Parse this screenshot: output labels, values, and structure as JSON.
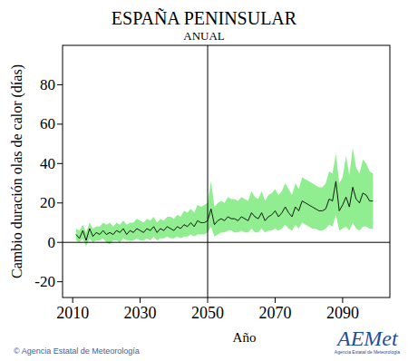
{
  "chart_data": {
    "type": "line",
    "title": "ESPAÑA PENINSULAR",
    "subtitle": "ANUAL",
    "x_label": "Año",
    "y_label": "Cambio duración olas de calor (días)",
    "source": "© Agencia Estatal de Meteorología",
    "logo": "AEMet",
    "logo_caption": "Agencia Estatal de Meteorología",
    "x": [
      2011,
      2012,
      2013,
      2014,
      2015,
      2016,
      2017,
      2018,
      2019,
      2020,
      2021,
      2022,
      2023,
      2024,
      2025,
      2026,
      2027,
      2028,
      2029,
      2030,
      2031,
      2032,
      2033,
      2034,
      2035,
      2036,
      2037,
      2038,
      2039,
      2040,
      2041,
      2042,
      2043,
      2044,
      2045,
      2046,
      2047,
      2048,
      2049,
      2050,
      2051,
      2052,
      2053,
      2054,
      2055,
      2056,
      2057,
      2058,
      2059,
      2060,
      2061,
      2062,
      2063,
      2064,
      2065,
      2066,
      2067,
      2068,
      2069,
      2070,
      2071,
      2072,
      2073,
      2074,
      2075,
      2076,
      2077,
      2078,
      2079,
      2080,
      2081,
      2082,
      2083,
      2084,
      2085,
      2086,
      2087,
      2088,
      2089,
      2090,
      2091,
      2092,
      2093,
      2094,
      2095,
      2096,
      2097,
      2098,
      2099
    ],
    "series": [
      {
        "color": "#000000",
        "values": [
          4,
          2,
          6,
          1,
          7,
          3,
          5,
          4,
          6,
          4,
          5,
          4,
          6,
          5,
          7,
          4,
          6,
          5,
          7,
          6,
          5,
          7,
          6,
          8,
          5,
          7,
          6,
          8,
          7,
          6,
          8,
          7,
          9,
          8,
          10,
          8,
          11,
          10,
          10,
          11,
          17,
          9,
          11,
          12,
          11,
          13,
          12,
          12,
          11,
          13,
          12,
          11,
          15,
          13,
          12,
          15,
          11,
          13,
          14,
          16,
          13,
          15,
          18,
          15,
          13,
          18,
          16,
          21,
          20,
          19,
          18,
          17,
          16,
          16,
          17,
          22,
          21,
          31,
          16,
          19,
          23,
          18,
          28,
          22,
          20,
          25,
          24,
          21,
          21
        ]
      }
    ],
    "band": {
      "color": "#90ee90",
      "lower": [
        1,
        0,
        2,
        -2,
        2,
        0,
        1,
        1,
        2,
        0,
        -1,
        1,
        1,
        0,
        2,
        1,
        1,
        1,
        2,
        1,
        1,
        2,
        1,
        3,
        1,
        2,
        2,
        3,
        2,
        2,
        3,
        2,
        3,
        3,
        4,
        3,
        4,
        4,
        4,
        5,
        8,
        3,
        4,
        5,
        5,
        6,
        6,
        5,
        5,
        6,
        5,
        5,
        7,
        5,
        5,
        7,
        5,
        6,
        6,
        7,
        6,
        7,
        9,
        7,
        6,
        9,
        7,
        10,
        9,
        8,
        7,
        7,
        6,
        6,
        7,
        9,
        8,
        14,
        6,
        7,
        8,
        6,
        10,
        7,
        6,
        8,
        8,
        7,
        7
      ],
      "upper": [
        7,
        6,
        9,
        5,
        10,
        7,
        8,
        8,
        10,
        9,
        10,
        8,
        10,
        9,
        11,
        9,
        10,
        10,
        12,
        11,
        10,
        12,
        11,
        13,
        10,
        12,
        11,
        13,
        13,
        12,
        14,
        13,
        16,
        15,
        17,
        15,
        19,
        18,
        19,
        20,
        31,
        18,
        20,
        21,
        20,
        23,
        22,
        22,
        21,
        23,
        22,
        21,
        26,
        23,
        22,
        26,
        21,
        24,
        25,
        27,
        24,
        26,
        30,
        27,
        24,
        30,
        27,
        33,
        32,
        31,
        30,
        29,
        28,
        28,
        30,
        36,
        35,
        45,
        30,
        33,
        44,
        34,
        48,
        38,
        35,
        42,
        40,
        36,
        35
      ]
    },
    "reference_lines": {
      "x": 2050,
      "y": 0
    },
    "xlim": [
      2007,
      2104
    ],
    "xticks": [
      2010,
      2030,
      2050,
      2070,
      2090
    ],
    "ylim": [
      -28,
      100
    ],
    "yticks": [
      -20,
      0,
      20,
      40,
      60,
      80
    ],
    "grid": false
  }
}
